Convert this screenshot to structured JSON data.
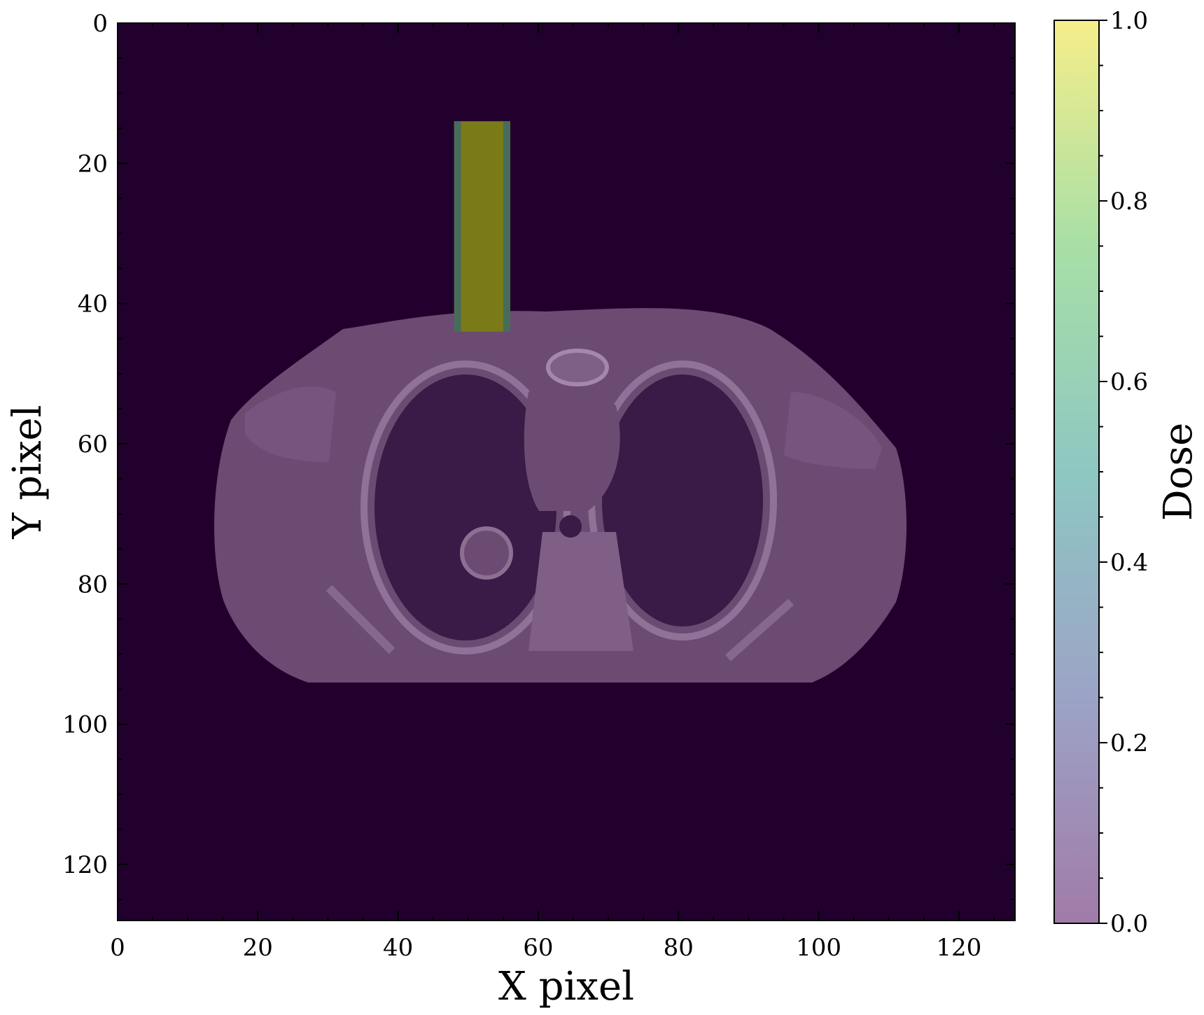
{
  "chart_data": {
    "type": "heatmap",
    "title": "",
    "xlabel": "X pixel",
    "ylabel": "Y pixel",
    "xlim": [
      0,
      128
    ],
    "ylim": [
      128,
      0
    ],
    "x_ticks": [
      0,
      20,
      40,
      60,
      80,
      100,
      120
    ],
    "y_ticks": [
      0,
      20,
      40,
      60,
      80,
      100,
      120
    ],
    "x_tick_labels": [
      "0",
      "20",
      "40",
      "60",
      "80",
      "100",
      "120"
    ],
    "y_tick_labels": [
      "0",
      "20",
      "40",
      "60",
      "80",
      "100",
      "120"
    ],
    "grid": false,
    "background_image": "CT slice (thorax cross-section) shown in dark purple tones",
    "dose_overlay": {
      "region_x": [
        48,
        56
      ],
      "region_y": [
        14,
        44
      ],
      "value": 1.0
    },
    "colorbar": {
      "label": "Dose",
      "colormap": "viridis (semi-transparent)",
      "range": [
        0.0,
        1.0
      ],
      "ticks": [
        0.0,
        0.2,
        0.4,
        0.6,
        0.8,
        1.0
      ],
      "tick_labels": [
        "0.0",
        "0.2",
        "0.4",
        "0.6",
        "0.8",
        "1.0"
      ]
    },
    "colors": {
      "background": "#22002e",
      "body": "#6c4b72",
      "lung": "#3a1a46",
      "dose_high": "#7b7a18"
    }
  }
}
